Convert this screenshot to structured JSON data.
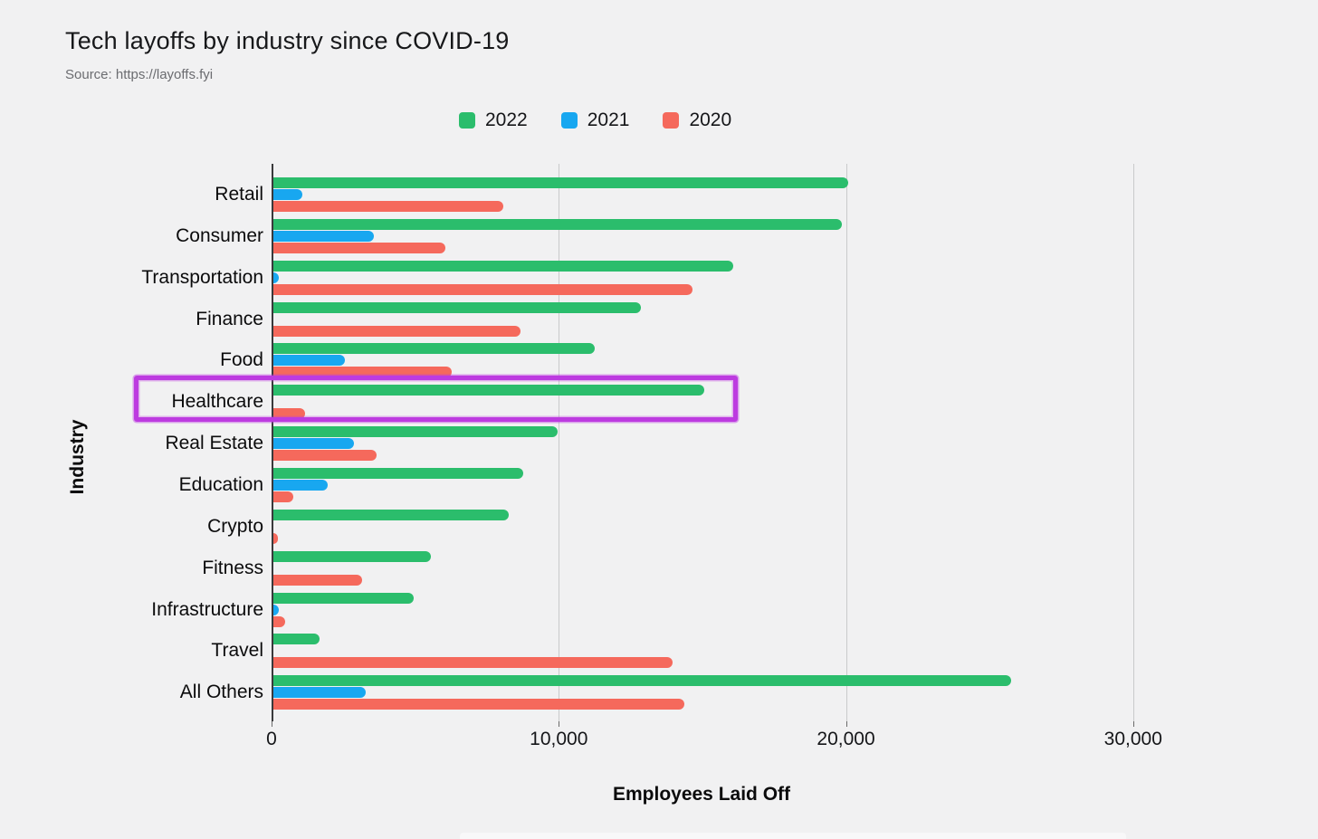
{
  "page": {
    "background": "#f1f1f2"
  },
  "chart_data": {
    "type": "bar",
    "orientation": "horizontal",
    "title": "Tech layoffs by industry since COVID-19",
    "source_note": "Source: https://layoffs.fyi",
    "xlabel": "Employees Laid Off",
    "ylabel": "Industry",
    "xlim": [
      0,
      34850
    ],
    "grid": "vertical-lines-at-ticks",
    "legend_position": "top-center",
    "xticks": [
      {
        "value": 0,
        "label": "0"
      },
      {
        "value": 10000,
        "label": "10,000"
      },
      {
        "value": 20000,
        "label": "20,000"
      },
      {
        "value": 30000,
        "label": "30,000"
      }
    ],
    "categories": [
      "Retail",
      "Consumer",
      "Transportation",
      "Finance",
      "Food",
      "Healthcare",
      "Real Estate",
      "Education",
      "Crypto",
      "Fitness",
      "Infrastructure",
      "Travel",
      "All Others"
    ],
    "series": [
      {
        "name": "2022",
        "color": "#2bbd6c",
        "values": [
          20000,
          19800,
          16000,
          12800,
          11200,
          15000,
          9900,
          8700,
          8200,
          5500,
          4900,
          1600,
          25700
        ]
      },
      {
        "name": "2021",
        "color": "#18a7f0",
        "values": [
          1000,
          3500,
          200,
          0,
          2500,
          0,
          2800,
          1900,
          0,
          0,
          200,
          0,
          3200
        ]
      },
      {
        "name": "2020",
        "color": "#f5695c",
        "values": [
          8000,
          6000,
          14600,
          8600,
          6200,
          1100,
          3600,
          700,
          150,
          3100,
          400,
          13900,
          14300
        ]
      }
    ],
    "annotation": {
      "type": "highlight-box",
      "category": "Healthcare",
      "color": "#bd3be0"
    }
  }
}
